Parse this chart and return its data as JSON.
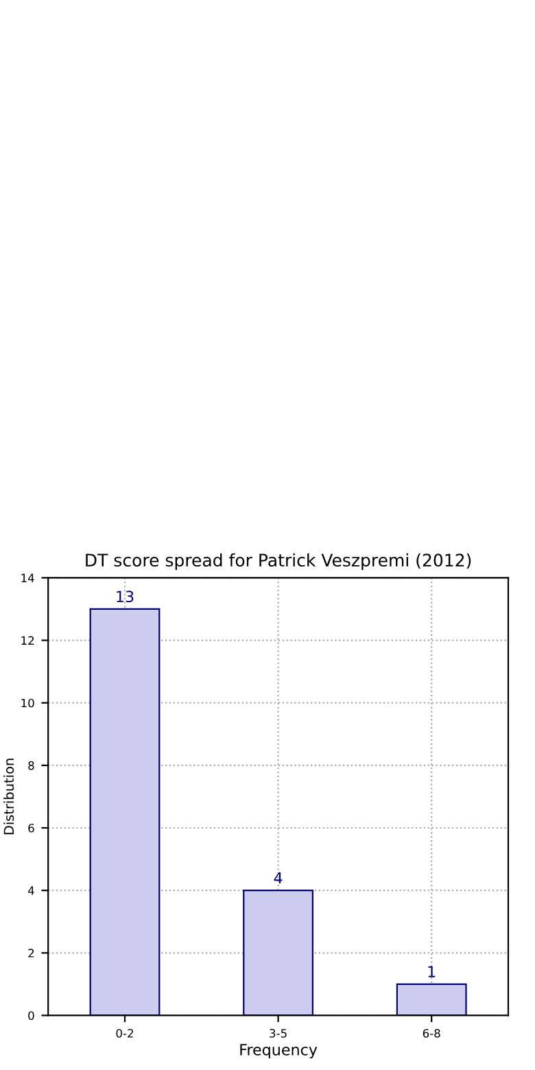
{
  "chart_data": {
    "type": "bar",
    "title": "DT score spread for Patrick Veszpremi (2012)",
    "xlabel": "Frequency",
    "ylabel": "Distribution",
    "categories": [
      "0-2",
      "3-5",
      "6-8"
    ],
    "values": [
      13,
      4,
      1
    ],
    "color": "#ccccee",
    "ylim": [
      0,
      14
    ],
    "yticks": [
      0,
      2,
      4,
      6,
      8,
      10,
      12,
      14
    ],
    "grid": true,
    "data_labels": true
  }
}
